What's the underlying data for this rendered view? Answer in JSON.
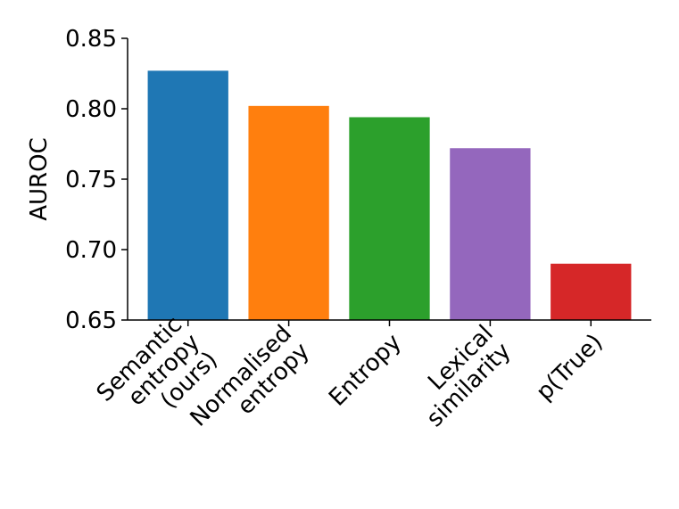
{
  "chart_data": {
    "type": "bar",
    "categories": [
      [
        "Semantic",
        "entropy",
        "(ours)"
      ],
      [
        "Normalised",
        "entropy"
      ],
      [
        "Entropy"
      ],
      [
        "Lexical",
        "similarity"
      ],
      [
        "p(True)"
      ]
    ],
    "values": [
      0.827,
      0.802,
      0.794,
      0.772,
      0.69
    ],
    "colors": [
      "#1f77b4",
      "#ff7f0e",
      "#2ca02c",
      "#9467bd",
      "#d62728"
    ],
    "ylabel": "AUROC",
    "xlabel": "",
    "title": "",
    "ylim": [
      0.65,
      0.85
    ],
    "yticks": [
      "0.65",
      "0.70",
      "0.75",
      "0.80",
      "0.85"
    ],
    "grid": false
  }
}
